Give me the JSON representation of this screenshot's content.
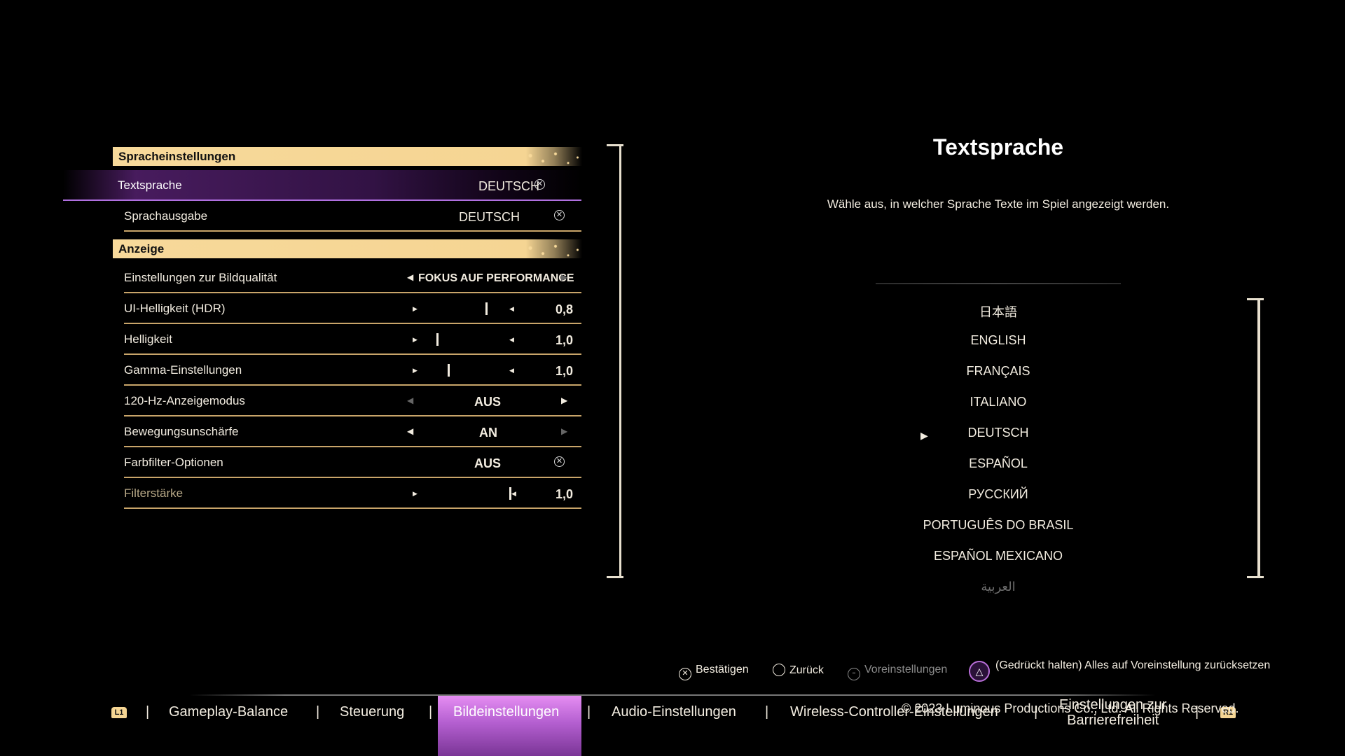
{
  "sections": {
    "language": "Spracheinstellungen",
    "display": "Anzeige"
  },
  "settings": {
    "text_language": {
      "label": "Textsprache",
      "value": "DEUTSCH"
    },
    "voice_language": {
      "label": "Sprachausgabe",
      "value": "DEUTSCH"
    },
    "image_quality": {
      "label": "Einstellungen zur Bildqualität",
      "value": "FOKUS AUF PERFORMANCE"
    },
    "ui_brightness": {
      "label": "UI-Helligkeit (HDR)",
      "value": "0,8",
      "level": 0.8
    },
    "brightness": {
      "label": "Helligkeit",
      "value": "1,0",
      "level": 0.1
    },
    "gamma": {
      "label": "Gamma-Einstellungen",
      "value": "1,0",
      "level": 0.2
    },
    "hz_mode": {
      "label": "120-Hz-Anzeigemodus",
      "value": "AUS"
    },
    "motion_blur": {
      "label": "Bewegungsunschärfe",
      "value": "AN"
    },
    "color_filter": {
      "label": "Farbfilter-Optionen",
      "value": "AUS"
    },
    "filter_strength": {
      "label": "Filterstärke",
      "value": "1,0",
      "level": 1.0
    }
  },
  "info_panel": {
    "title": "Textsprache",
    "description": "Wähle aus, in welcher Sprache Texte im Spiel angezeigt werden.",
    "languages": [
      "日本語",
      "ENGLISH",
      "FRANÇAIS",
      "ITALIANO",
      "DEUTSCH",
      "ESPAÑOL",
      "РУССКИЙ",
      "PORTUGUÊS DO BRASIL",
      "ESPAÑOL MEXICANO",
      "العربية"
    ],
    "selected_language": "DEUTSCH"
  },
  "hints": {
    "confirm": "Bestätigen",
    "back": "Zurück",
    "defaults": "Voreinstellungen",
    "reset_all": "(Gedrückt halten) Alles auf Voreinstellung zurücksetzen"
  },
  "tabs": {
    "l1": "L1",
    "r1": "R1",
    "gameplay": "Gameplay-Balance",
    "controls": "Steuerung",
    "image": "Bildeinstellungen",
    "audio": "Audio-Einstellungen",
    "wireless": "Wireless-Controller-Einstellungen",
    "accessibility_line1": "Einstellungen zur",
    "accessibility_line2": "Barrierefreiheit",
    "separator": "|"
  },
  "copyright": "© 2023 Luminous Productions Co., Ltd. All Rights Reserved.",
  "colors": {
    "header_gold": "#f5d593",
    "row_line": "#c9a56a",
    "selection_purple": "#b45fd0"
  }
}
